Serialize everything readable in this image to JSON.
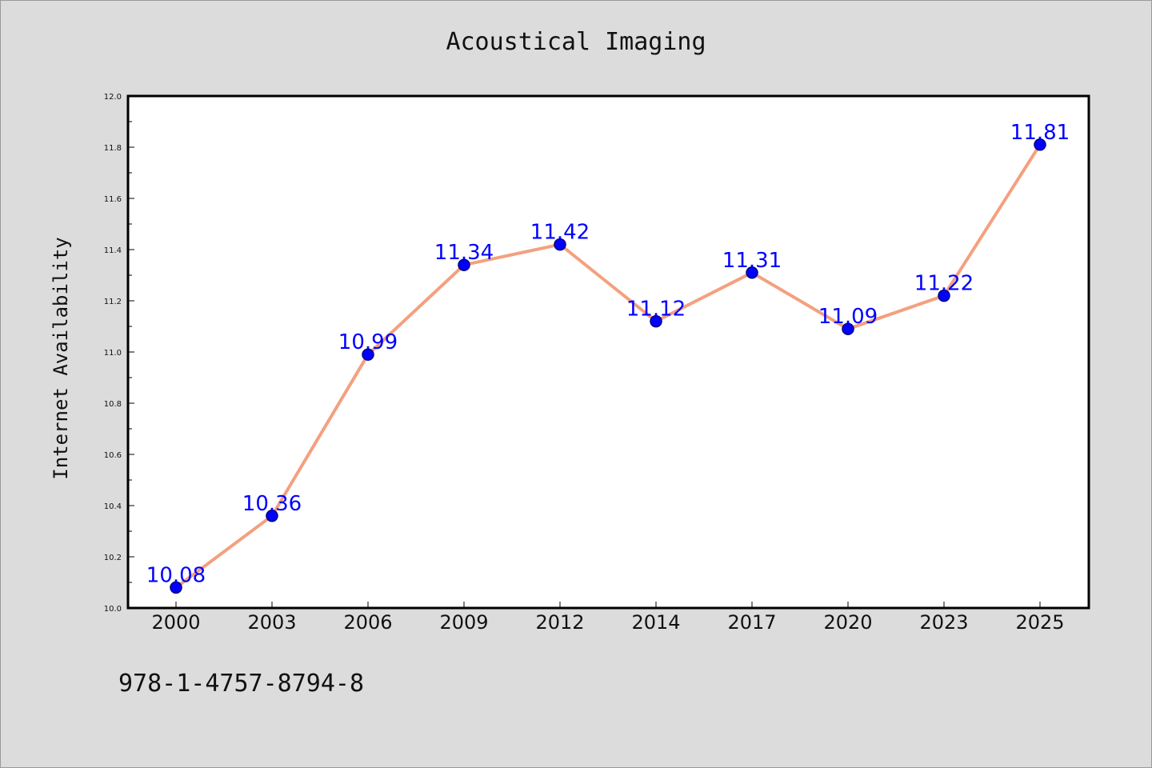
{
  "chart_data": {
    "type": "line",
    "title": "Acoustical Imaging",
    "xlabel": "",
    "ylabel": "Internet Availability",
    "categories": [
      "2000",
      "2003",
      "2006",
      "2009",
      "2012",
      "2014",
      "2017",
      "2020",
      "2023",
      "2025"
    ],
    "series": [
      {
        "values": [
          10.08,
          10.36,
          10.99,
          11.34,
          11.42,
          11.12,
          11.31,
          11.09,
          11.22,
          11.81
        ],
        "data_labels": [
          "10.08",
          "10.36",
          "10.99",
          "11.34",
          "11.42",
          "11.12",
          "11.31",
          "11.09",
          "11.22",
          "11.81"
        ]
      }
    ],
    "ylim": [
      10.0,
      12.0
    ],
    "yticks": [
      "10.0",
      "10.2",
      "10.4",
      "10.6",
      "10.8",
      "11.0",
      "11.2",
      "11.4",
      "11.6",
      "11.8",
      "12.0"
    ],
    "grid": false,
    "legend": "none",
    "colors": {
      "line": "#f4a07f",
      "marker": "#0000ff",
      "marker_edge": "#000080",
      "data_label": "#0000ff",
      "plot_background": "#ffffff",
      "figure_background": "#dcdcdc"
    }
  },
  "footer": {
    "isbn": "978-1-4757-8794-8"
  }
}
